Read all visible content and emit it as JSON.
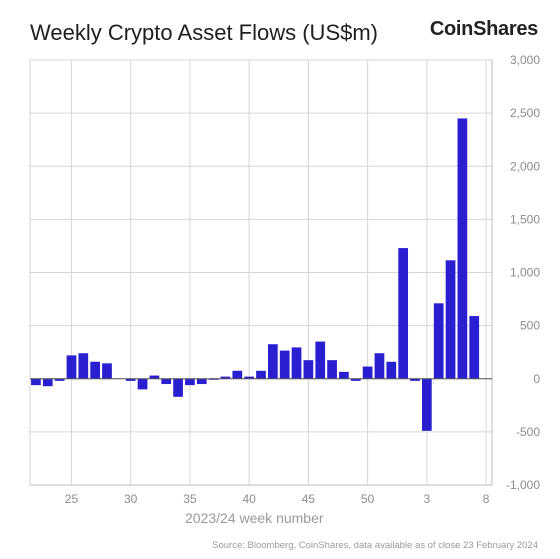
{
  "title": "Weekly Crypto Asset Flows (US$m)",
  "brand": "CoinShares",
  "source": "Source: Bloomberg, CoinShares, data available as of close 23 February 2024",
  "colors": {
    "bar": "#2a1fd0",
    "grid": "#d6d6d6",
    "axis": "#bdbdbd"
  },
  "chart_data": {
    "type": "bar",
    "title": "Weekly Crypto Asset Flows (US$m)",
    "xlabel": "2023/24 week number",
    "ylabel": "",
    "ylim": [
      -1000,
      3000
    ],
    "y_ticks": [
      3000,
      2500,
      2000,
      1500,
      1000,
      500,
      0,
      -500,
      -1000
    ],
    "y_tick_labels": [
      "3,000",
      "2,500",
      "2,000",
      "1,500",
      "1,000",
      "500",
      "0",
      "-500",
      "-1,000"
    ],
    "x_tick_labels": [
      "25",
      "30",
      "35",
      "40",
      "45",
      "50",
      "3",
      "8"
    ],
    "categories": [
      "22",
      "23",
      "24",
      "25",
      "26",
      "27",
      "28",
      "29",
      "30",
      "31",
      "32",
      "33",
      "34",
      "35",
      "36",
      "37",
      "38",
      "39",
      "40",
      "41",
      "42",
      "43",
      "44",
      "45",
      "46",
      "47",
      "48",
      "49",
      "50",
      "51",
      "52",
      "1",
      "2",
      "3",
      "4",
      "5",
      "6",
      "7",
      "8"
    ],
    "values": [
      -60,
      -70,
      -20,
      220,
      240,
      160,
      145,
      0,
      -20,
      -100,
      30,
      -50,
      -170,
      -60,
      -50,
      -10,
      20,
      75,
      20,
      75,
      325,
      265,
      295,
      175,
      350,
      175,
      65,
      -20,
      115,
      240,
      160,
      1230,
      -20,
      -490,
      710,
      1115,
      2450,
      590,
      0
    ],
    "grid": true,
    "y_axis_position": "right"
  }
}
